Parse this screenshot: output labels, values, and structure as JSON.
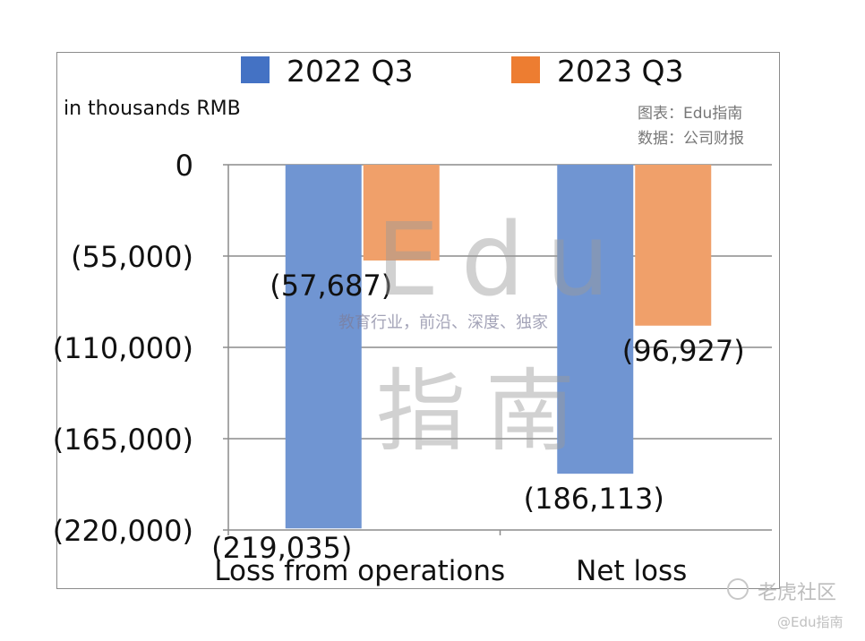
{
  "watermarks": {
    "edu_big": "Edu",
    "cn_big": "指南",
    "tagline": "教育行业，前沿、深度、独家",
    "platform": "老虎社区",
    "handle": "@Edu指南"
  },
  "credits": {
    "chart_by": "图表：Edu指南",
    "data_from": "数据：公司财报"
  },
  "chart_data": {
    "type": "bar",
    "unit_label": "in thousands RMB",
    "categories": [
      "Loss from operations",
      "Net loss"
    ],
    "series": [
      {
        "name": "2022 Q3",
        "color": "#7095d2",
        "legend_color": "#4472c4",
        "values": [
          -219035,
          -186113
        ],
        "labels": [
          "(219,035)",
          "(186,113)"
        ]
      },
      {
        "name": "2023 Q3",
        "color": "#f0a06a",
        "legend_color": "#ed7d31",
        "values": [
          -57687,
          -96927
        ],
        "labels": [
          "(57,687)",
          "(96,927)"
        ]
      }
    ],
    "ylim": [
      -220000,
      0
    ],
    "yticks": [
      0,
      -55000,
      -110000,
      -165000,
      -220000
    ],
    "ytick_labels": [
      "0",
      "(55,000)",
      "(110,000)",
      "(165,000)",
      "(220,000)"
    ],
    "grid": true,
    "legend_position": "top"
  }
}
